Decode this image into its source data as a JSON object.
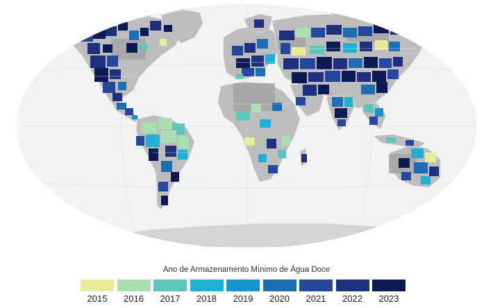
{
  "legend": {
    "title": "Ano de Armazenamento Mínimo de Água Doce",
    "items": [
      {
        "year": "2015",
        "color": "#e6ec97"
      },
      {
        "year": "2016",
        "color": "#a9dfb1"
      },
      {
        "year": "2017",
        "color": "#5ec7b8"
      },
      {
        "year": "2018",
        "color": "#20b0d3"
      },
      {
        "year": "2019",
        "color": "#1696cc"
      },
      {
        "year": "2020",
        "color": "#1d6db5"
      },
      {
        "year": "2021",
        "color": "#24479d"
      },
      {
        "year": "2022",
        "color": "#1e2f7e"
      },
      {
        "year": "2023",
        "color": "#0f1a55"
      }
    ]
  },
  "map_colors": {
    "ocean": "#f1f2f2",
    "land": "#bdbdbd",
    "land_dark": "#a3a3a3",
    "antarctica": "#d4d4d4"
  }
}
